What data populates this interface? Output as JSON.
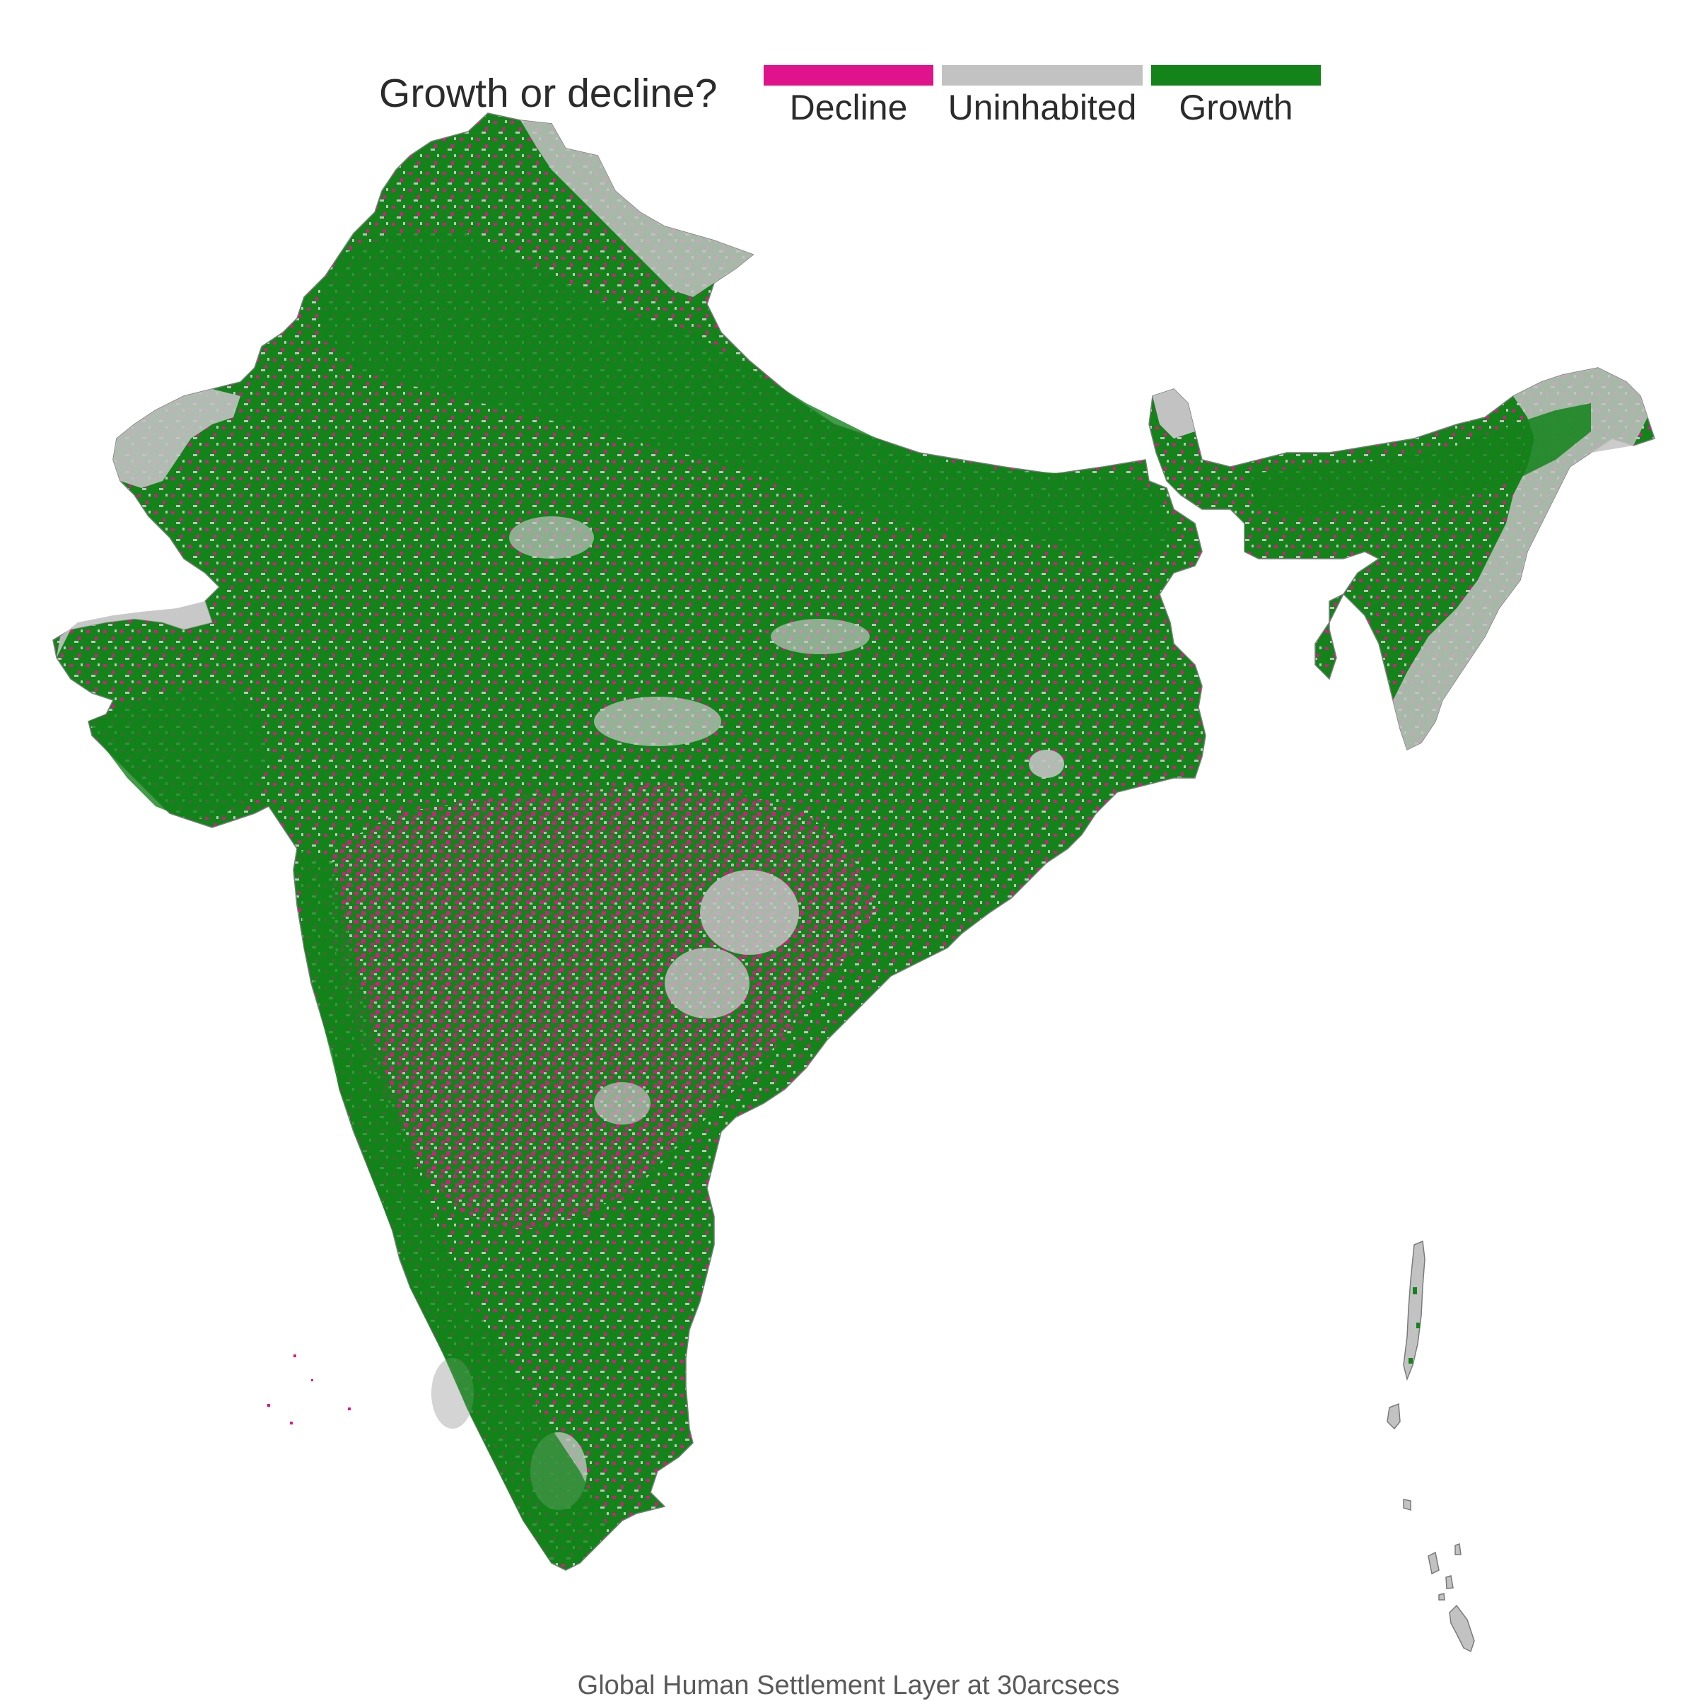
{
  "legend": {
    "title": "Growth or decline?",
    "items": [
      {
        "key": "decline",
        "label": "Decline",
        "color": "#e0138c"
      },
      {
        "key": "uninhabited",
        "label": "Uninhabited",
        "color": "#c2c2c2"
      },
      {
        "key": "growth",
        "label": "Growth",
        "color": "#13831a"
      }
    ]
  },
  "caption": "Global Human Settlement Layer at 30arcsecs",
  "map": {
    "background": "#ffffff",
    "outline_color": "#7a7a7a"
  }
}
